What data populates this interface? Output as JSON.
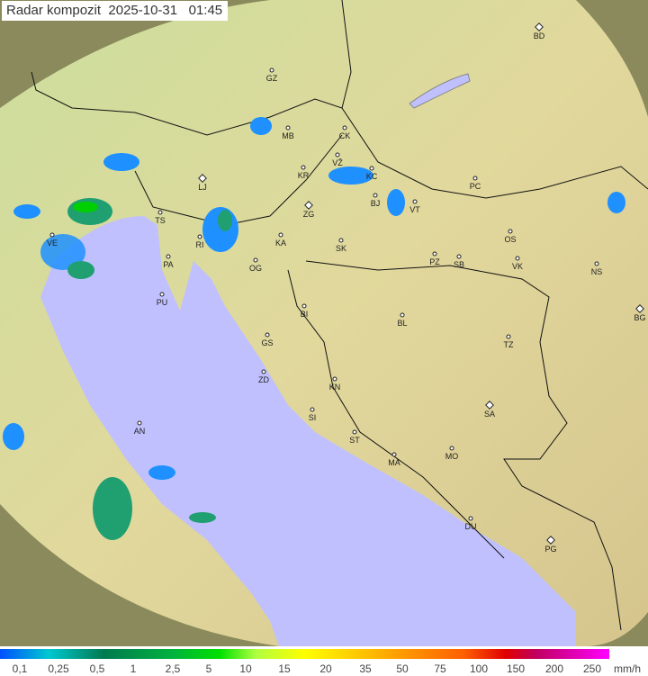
{
  "title": "Radar kompozit  2025-10-31   01:45",
  "colors": {
    "sea": "#c0c0ff",
    "coverage": "#d8eca8",
    "outside": "#8a8a60",
    "radar_low": "#1e90ff",
    "radar_mid": "#20a070",
    "radar_high": "#00d000"
  },
  "cities": [
    {
      "label": "BD",
      "capital": true
    },
    {
      "label": "GZ"
    },
    {
      "label": "MB"
    },
    {
      "label": "CK"
    },
    {
      "label": "KR"
    },
    {
      "label": "VŽ"
    },
    {
      "label": "KC"
    },
    {
      "label": "PC"
    },
    {
      "label": "LJ",
      "capital": true
    },
    {
      "label": "TS"
    },
    {
      "label": "ZG",
      "capital": true
    },
    {
      "label": "BJ"
    },
    {
      "label": "VT"
    },
    {
      "label": "VE"
    },
    {
      "label": "RI"
    },
    {
      "label": "KA"
    },
    {
      "label": "SK"
    },
    {
      "label": "OS"
    },
    {
      "label": "PA"
    },
    {
      "label": "OG"
    },
    {
      "label": "PZ"
    },
    {
      "label": "SB"
    },
    {
      "label": "VK"
    },
    {
      "label": "NS"
    },
    {
      "label": "PU"
    },
    {
      "label": "BI"
    },
    {
      "label": "BL"
    },
    {
      "label": "BG",
      "capital": true
    },
    {
      "label": "GS"
    },
    {
      "label": "TZ"
    },
    {
      "label": "ZD"
    },
    {
      "label": "KN"
    },
    {
      "label": "SA",
      "capital": true
    },
    {
      "label": "SI"
    },
    {
      "label": "AN"
    },
    {
      "label": "ST"
    },
    {
      "label": "MO"
    },
    {
      "label": "MA"
    },
    {
      "label": "DU"
    },
    {
      "label": "PG",
      "capital": true
    }
  ],
  "legend": {
    "ticks": [
      "0,1",
      "0,25",
      "0,5",
      "1",
      "2,5",
      "5",
      "10",
      "15",
      "20",
      "35",
      "50",
      "75",
      "100",
      "150",
      "200",
      "250"
    ],
    "unit": "mm/h"
  }
}
